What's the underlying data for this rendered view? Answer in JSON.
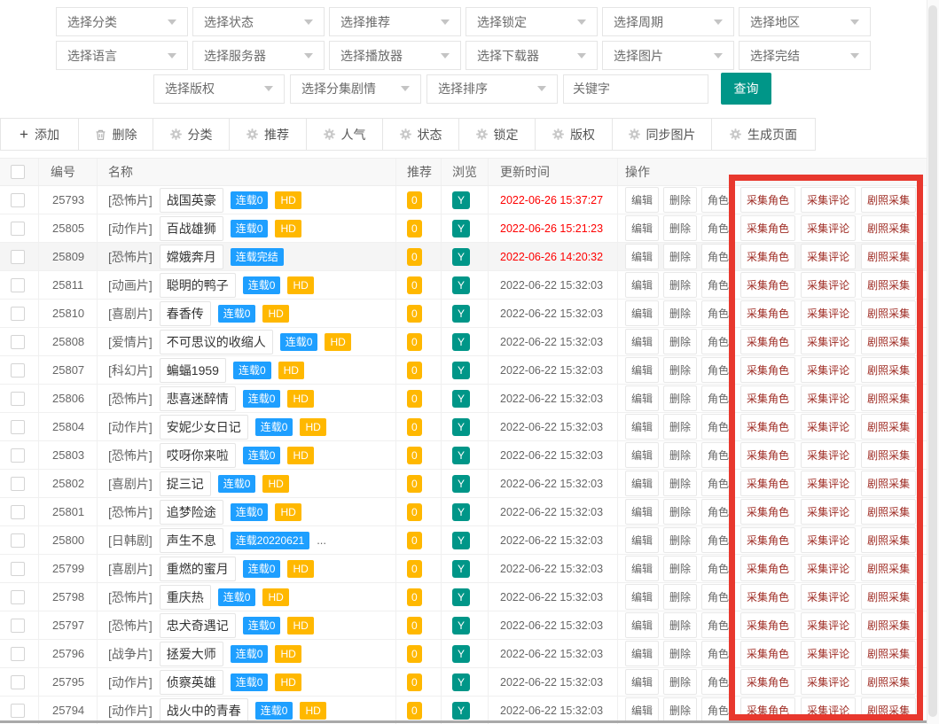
{
  "filters": {
    "row1": [
      {
        "key": "category",
        "label": "选择分类"
      },
      {
        "key": "status",
        "label": "选择状态"
      },
      {
        "key": "recommend",
        "label": "选择推荐"
      },
      {
        "key": "lock",
        "label": "选择锁定"
      },
      {
        "key": "cycle",
        "label": "选择周期"
      },
      {
        "key": "area",
        "label": "选择地区"
      }
    ],
    "row2": [
      {
        "key": "language",
        "label": "选择语言"
      },
      {
        "key": "server",
        "label": "选择服务器"
      },
      {
        "key": "player",
        "label": "选择播放器"
      },
      {
        "key": "downloader",
        "label": "选择下载器"
      },
      {
        "key": "picture",
        "label": "选择图片"
      },
      {
        "key": "finished",
        "label": "选择完结"
      }
    ],
    "row3": [
      {
        "key": "copyright",
        "label": "选择版权"
      },
      {
        "key": "episode-plot",
        "label": "选择分集剧情"
      },
      {
        "key": "sort",
        "label": "选择排序"
      }
    ],
    "keyword_placeholder": "关键字",
    "search_label": "查询"
  },
  "toolbar": {
    "items": [
      {
        "key": "add",
        "label": "添加",
        "icon": "plus-icon"
      },
      {
        "key": "delete",
        "label": "删除",
        "icon": "trash-icon"
      },
      {
        "key": "classify",
        "label": "分类",
        "icon": "gear-icon"
      },
      {
        "key": "recommend",
        "label": "推荐",
        "icon": "gear-icon"
      },
      {
        "key": "popularity",
        "label": "人气",
        "icon": "gear-icon"
      },
      {
        "key": "status",
        "label": "状态",
        "icon": "gear-icon"
      },
      {
        "key": "lock",
        "label": "锁定",
        "icon": "gear-icon"
      },
      {
        "key": "copyright",
        "label": "版权",
        "icon": "gear-icon"
      },
      {
        "key": "sync-images",
        "label": "同步图片",
        "icon": "gear-icon"
      },
      {
        "key": "generate-pages",
        "label": "生成页面",
        "icon": "gear-icon"
      }
    ]
  },
  "table": {
    "headers": {
      "id": "编号",
      "name": "名称",
      "recommend": "推荐",
      "views": "浏览",
      "updated": "更新时间",
      "actions": "操作"
    },
    "action_labels": [
      "编辑",
      "删除",
      "角色"
    ],
    "collect_labels": [
      "采集角色",
      "采集评论",
      "剧照采集"
    ],
    "rows": [
      {
        "id": "25793",
        "category": "[恐怖片]",
        "name": "战国英豪",
        "serial": "连载0",
        "hd": "HD",
        "suffix": "",
        "recommend": "0",
        "views": "Y",
        "updated": "2022-06-26 15:37:27",
        "recent": true,
        "highlighted": false
      },
      {
        "id": "25805",
        "category": "[动作片]",
        "name": "百战雄狮",
        "serial": "连载0",
        "hd": "HD",
        "suffix": "",
        "recommend": "0",
        "views": "Y",
        "updated": "2022-06-26 15:21:23",
        "recent": true,
        "highlighted": false
      },
      {
        "id": "25809",
        "category": "[恐怖片]",
        "name": "嫦娥奔月",
        "serial": "连载完结",
        "hd": "",
        "suffix": "",
        "recommend": "0",
        "views": "Y",
        "updated": "2022-06-26 14:20:32",
        "recent": true,
        "highlighted": true
      },
      {
        "id": "25811",
        "category": "[动画片]",
        "name": "聪明的鸭子",
        "serial": "连载0",
        "hd": "HD",
        "suffix": "",
        "recommend": "0",
        "views": "Y",
        "updated": "2022-06-22 15:32:03",
        "recent": false,
        "highlighted": false
      },
      {
        "id": "25810",
        "category": "[喜剧片]",
        "name": "春香传",
        "serial": "连载0",
        "hd": "HD",
        "suffix": "",
        "recommend": "0",
        "views": "Y",
        "updated": "2022-06-22 15:32:03",
        "recent": false,
        "highlighted": false
      },
      {
        "id": "25808",
        "category": "[爱情片]",
        "name": "不可思议的收缩人",
        "serial": "连载0",
        "hd": "HD",
        "suffix": "",
        "recommend": "0",
        "views": "Y",
        "updated": "2022-06-22 15:32:03",
        "recent": false,
        "highlighted": false
      },
      {
        "id": "25807",
        "category": "[科幻片]",
        "name": "蝙蝠1959",
        "serial": "连载0",
        "hd": "HD",
        "suffix": "",
        "recommend": "0",
        "views": "Y",
        "updated": "2022-06-22 15:32:03",
        "recent": false,
        "highlighted": false
      },
      {
        "id": "25806",
        "category": "[恐怖片]",
        "name": "悲喜迷醉情",
        "serial": "连载0",
        "hd": "HD",
        "suffix": "",
        "recommend": "0",
        "views": "Y",
        "updated": "2022-06-22 15:32:03",
        "recent": false,
        "highlighted": false
      },
      {
        "id": "25804",
        "category": "[动作片]",
        "name": "安妮少女日记",
        "serial": "连载0",
        "hd": "HD",
        "suffix": "",
        "recommend": "0",
        "views": "Y",
        "updated": "2022-06-22 15:32:03",
        "recent": false,
        "highlighted": false
      },
      {
        "id": "25803",
        "category": "[恐怖片]",
        "name": "哎呀你来啦",
        "serial": "连载0",
        "hd": "HD",
        "suffix": "",
        "recommend": "0",
        "views": "Y",
        "updated": "2022-06-22 15:32:03",
        "recent": false,
        "highlighted": false
      },
      {
        "id": "25802",
        "category": "[喜剧片]",
        "name": "捉三记",
        "serial": "连载0",
        "hd": "HD",
        "suffix": "",
        "recommend": "0",
        "views": "Y",
        "updated": "2022-06-22 15:32:03",
        "recent": false,
        "highlighted": false
      },
      {
        "id": "25801",
        "category": "[恐怖片]",
        "name": "追梦险途",
        "serial": "连载0",
        "hd": "HD",
        "suffix": "",
        "recommend": "0",
        "views": "Y",
        "updated": "2022-06-22 15:32:03",
        "recent": false,
        "highlighted": false
      },
      {
        "id": "25800",
        "category": "[日韩剧]",
        "name": "声生不息",
        "serial": "连载20220621",
        "hd": "",
        "suffix": "...",
        "recommend": "0",
        "views": "Y",
        "updated": "2022-06-22 15:32:03",
        "recent": false,
        "highlighted": false
      },
      {
        "id": "25799",
        "category": "[喜剧片]",
        "name": "重燃的蜜月",
        "serial": "连载0",
        "hd": "HD",
        "suffix": "",
        "recommend": "0",
        "views": "Y",
        "updated": "2022-06-22 15:32:03",
        "recent": false,
        "highlighted": false
      },
      {
        "id": "25798",
        "category": "[恐怖片]",
        "name": "重庆热",
        "serial": "连载0",
        "hd": "HD",
        "suffix": "",
        "recommend": "0",
        "views": "Y",
        "updated": "2022-06-22 15:32:03",
        "recent": false,
        "highlighted": false
      },
      {
        "id": "25797",
        "category": "[恐怖片]",
        "name": "忠犬奇遇记",
        "serial": "连载0",
        "hd": "HD",
        "suffix": "",
        "recommend": "0",
        "views": "Y",
        "updated": "2022-06-22 15:32:03",
        "recent": false,
        "highlighted": false
      },
      {
        "id": "25796",
        "category": "[战争片]",
        "name": "拯爱大师",
        "serial": "连载0",
        "hd": "HD",
        "suffix": "",
        "recommend": "0",
        "views": "Y",
        "updated": "2022-06-22 15:32:03",
        "recent": false,
        "highlighted": false
      },
      {
        "id": "25795",
        "category": "[动作片]",
        "name": "侦察英雄",
        "serial": "连载0",
        "hd": "HD",
        "suffix": "",
        "recommend": "0",
        "views": "Y",
        "updated": "2022-06-22 15:32:03",
        "recent": false,
        "highlighted": false
      },
      {
        "id": "25794",
        "category": "[动作片]",
        "name": "战火中的青春",
        "serial": "连载0",
        "hd": "HD",
        "suffix": "",
        "recommend": "0",
        "views": "Y",
        "updated": "2022-06-22 15:32:03",
        "recent": false,
        "highlighted": false
      }
    ]
  },
  "colors": {
    "accent_teal": "#009688",
    "badge_blue": "#1e9fff",
    "badge_orange": "#ffb800",
    "date_red": "#fe0000",
    "collect_text_red": "#9e2a22",
    "annotation_red": "#e8382e"
  }
}
